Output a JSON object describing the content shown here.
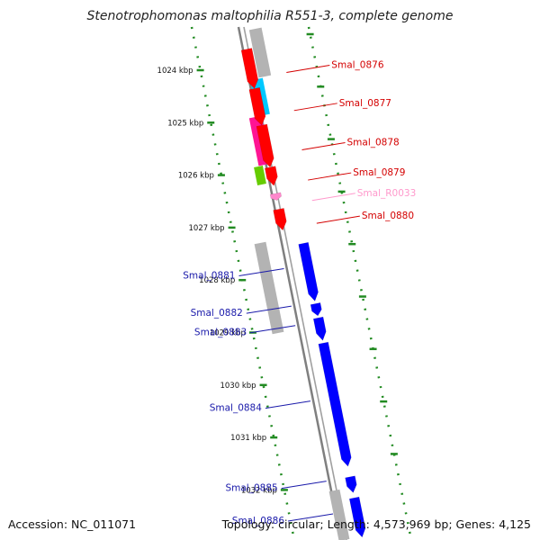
{
  "title": "Stenotrophomonas maltophilia R551-3, complete genome",
  "footer": {
    "accession": "Accession: NC_011071",
    "summary": "Topology: circular; Length: 4,573,969 bp; Genes: 4,125"
  },
  "colors": {
    "backbone": "#7f7f7f",
    "forward_gene": "#ff0000",
    "reverse_gene": "#0000ff",
    "cds_gray": "#b3b3b3",
    "cds_cyan": "#00c8ff",
    "cds_magenta": "#ff1493",
    "cds_green": "#66cc00",
    "rna_pink": "#ff88cc",
    "tick_green": "#228b22",
    "label_red": "#d40000",
    "label_blue": "#1a1aaa",
    "label_pink": "#ff99cc"
  },
  "scale": {
    "unit": "kbp",
    "ticks": [
      1024,
      1025,
      1026,
      1027,
      1028,
      1029,
      1030,
      1031,
      1032
    ]
  },
  "genes": [
    {
      "label": "Smal_0876",
      "strand": "+",
      "start": 1023.6,
      "end": 1024.35,
      "color_key": "forward_gene"
    },
    {
      "label": "Smal_0877",
      "strand": "+",
      "start": 1024.35,
      "end": 1025.05,
      "color_key": "forward_gene"
    },
    {
      "label": "Smal_0878",
      "strand": "+",
      "start": 1025.05,
      "end": 1025.85,
      "color_key": "forward_gene"
    },
    {
      "label": "Smal_0879",
      "strand": "+",
      "start": 1025.85,
      "end": 1026.2,
      "color_key": "forward_gene"
    },
    {
      "label": "Smal_R0033",
      "strand": "+",
      "start": 1026.35,
      "end": 1026.48,
      "color_key": "rna_pink"
    },
    {
      "label": "Smal_0880",
      "strand": "+",
      "start": 1026.65,
      "end": 1027.05,
      "color_key": "forward_gene"
    },
    {
      "label": "Smal_0881",
      "strand": "-",
      "start": 1027.3,
      "end": 1028.4,
      "color_key": "reverse_gene"
    },
    {
      "label": "Smal_0882",
      "strand": "-",
      "start": 1028.45,
      "end": 1028.68,
      "color_key": "reverse_gene"
    },
    {
      "label": "Smal_0883",
      "strand": "-",
      "start": 1028.72,
      "end": 1029.15,
      "color_key": "reverse_gene"
    },
    {
      "label": "Smal_0884",
      "strand": "-",
      "start": 1029.2,
      "end": 1031.55,
      "color_key": "reverse_gene"
    },
    {
      "label": "Smal_0885",
      "strand": "-",
      "start": 1031.75,
      "end": 1032.05,
      "color_key": "reverse_gene"
    },
    {
      "label": "Smal_0886",
      "strand": "-",
      "start": 1032.15,
      "end": 1032.9,
      "color_key": "reverse_gene"
    }
  ]
}
